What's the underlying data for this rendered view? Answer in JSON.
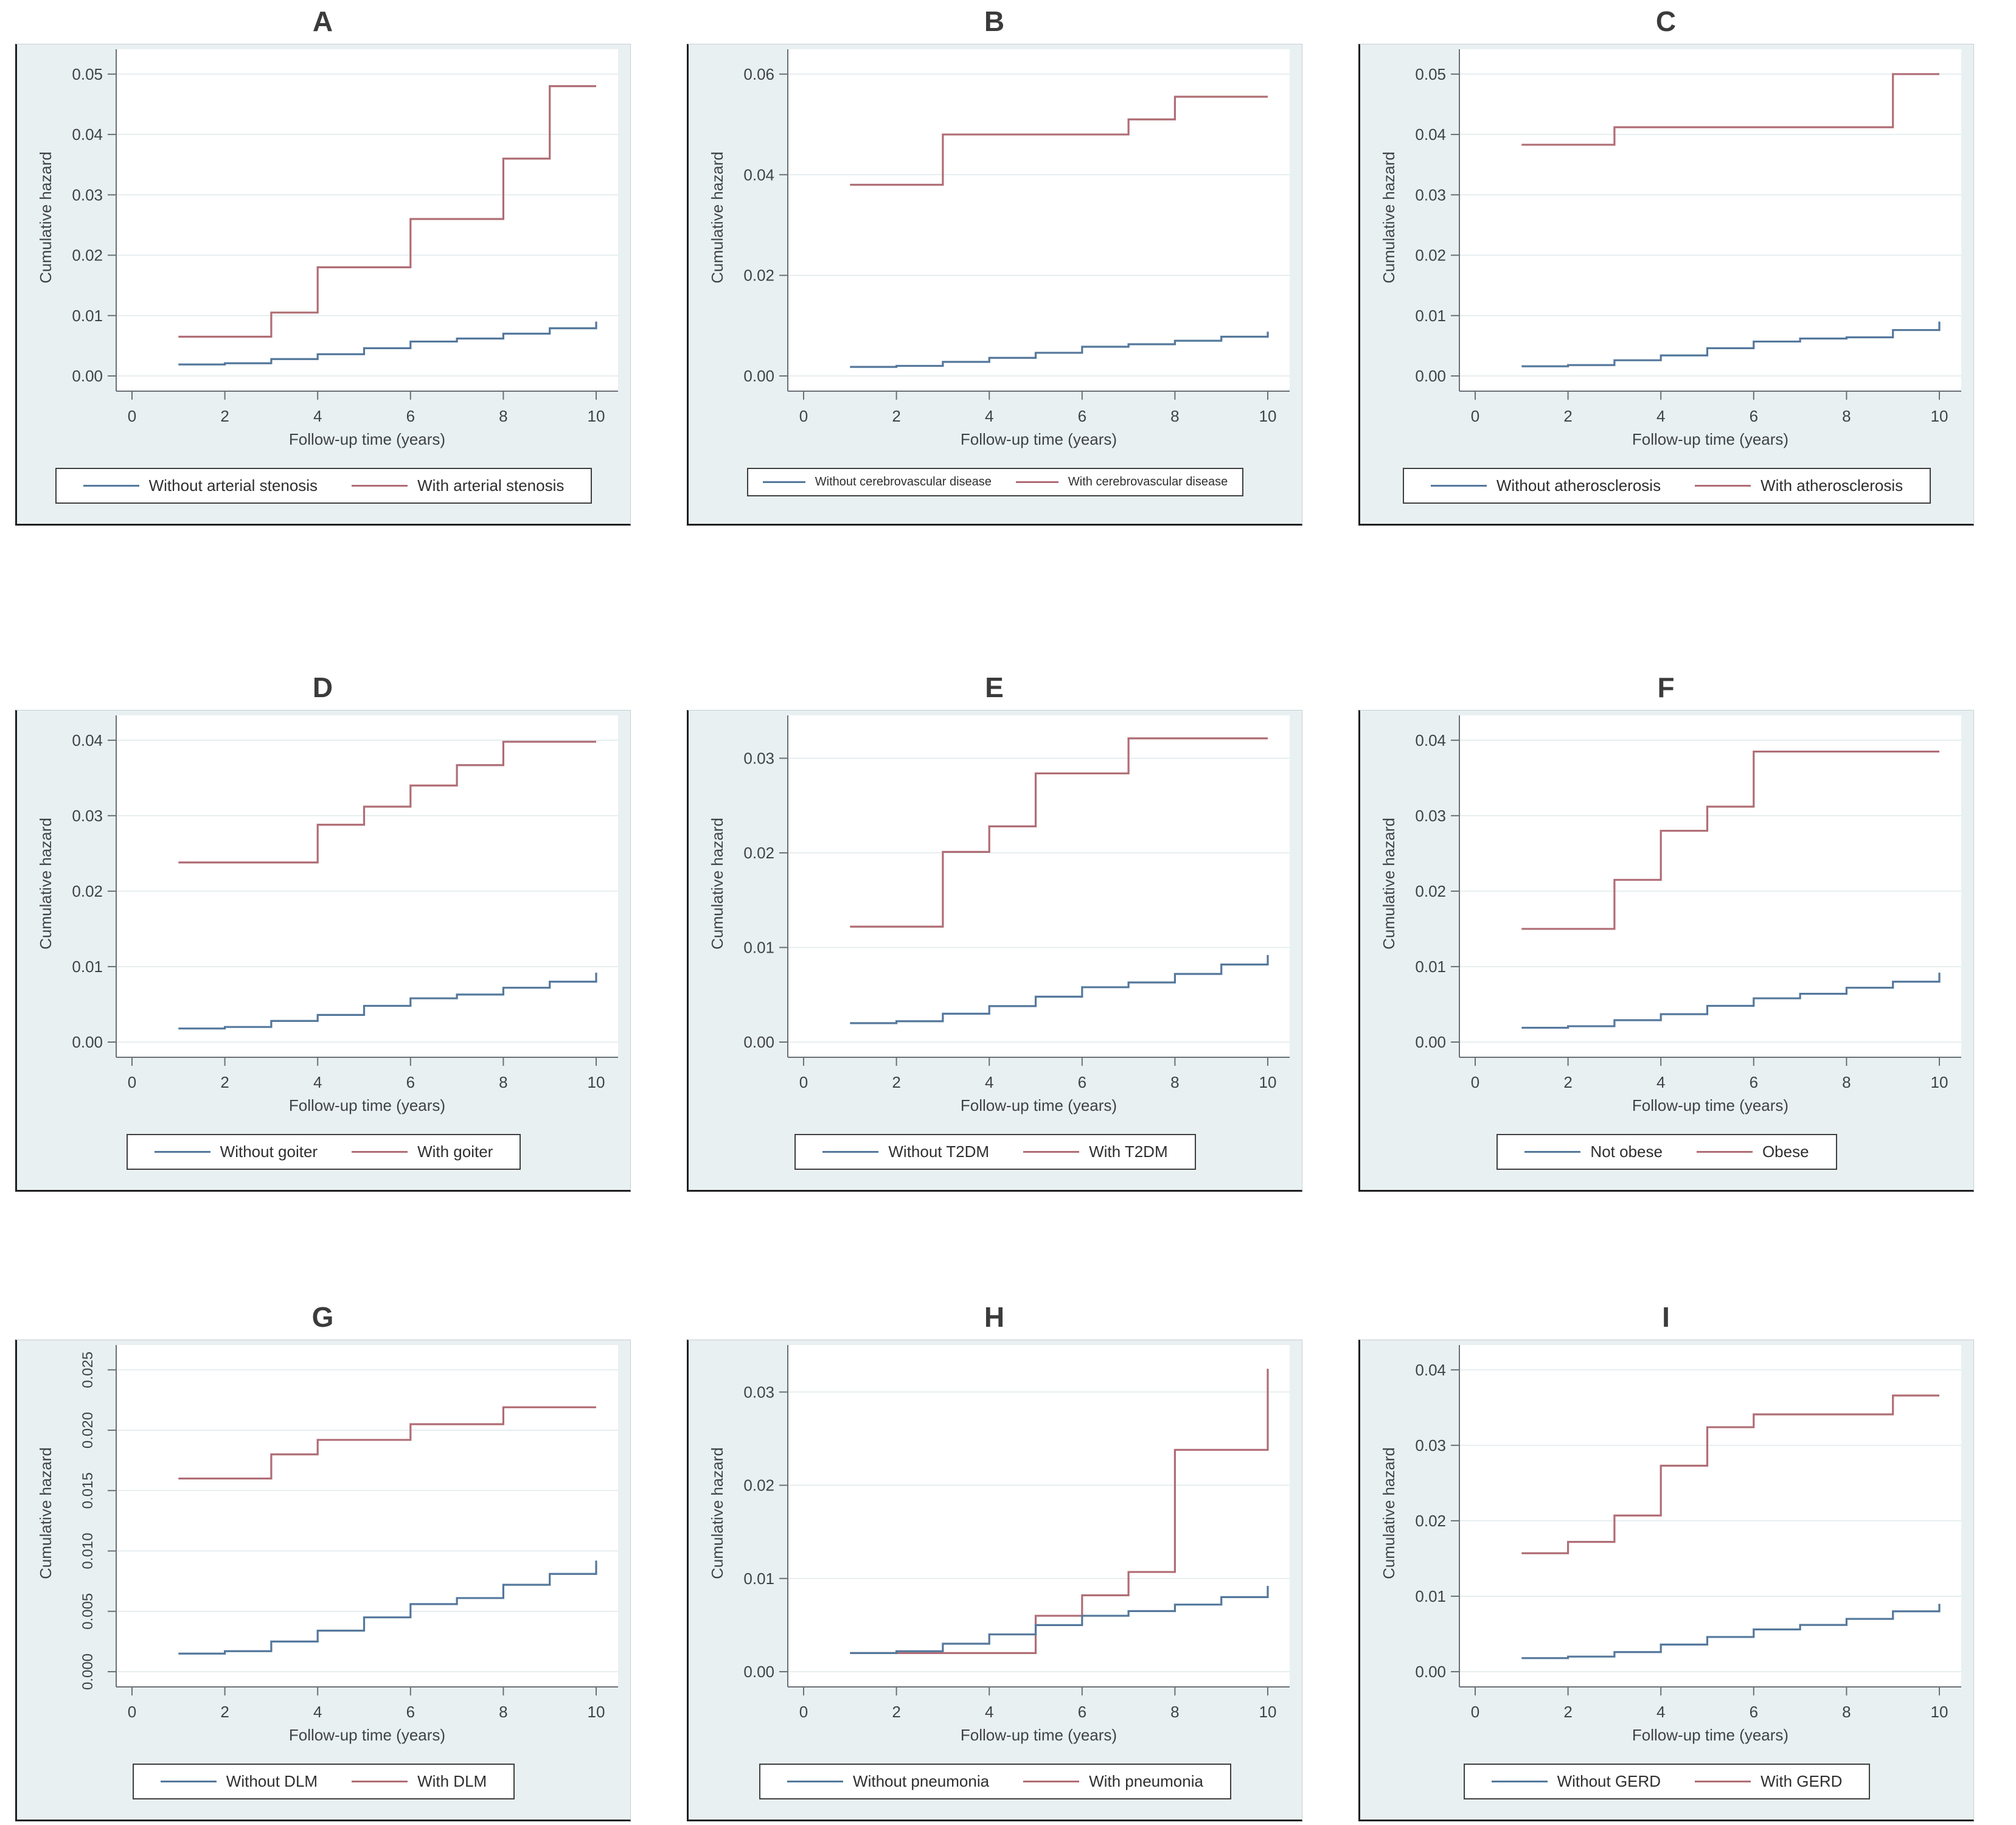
{
  "style": {
    "blue": "#54789c",
    "red": "#b06d75",
    "frame_bg": "#e9f0f2",
    "plot_bg": "#ffffff",
    "grid": "#dfe9ec",
    "axis": "#6a7075",
    "tick_text": "#3f4349",
    "title_text": "#3b3b3b",
    "legend_border": "#3f3f3f"
  },
  "chart_data": [
    {
      "id": "A",
      "type": "line",
      "subtype": "step",
      "title": "A",
      "xlabel": "Follow-up time (years)",
      "ylabel": "Cumulative hazard",
      "xticks": [
        0,
        2,
        4,
        6,
        8,
        10
      ],
      "xtick_labels": [
        "0",
        "2",
        "4",
        "6",
        "8",
        "10"
      ],
      "xlim": [
        0,
        10
      ],
      "ytick_values": [
        0,
        0.01,
        0.02,
        0.03,
        0.04,
        0.05
      ],
      "ytick_labels": [
        "0.00",
        "0.01",
        "0.02",
        "0.03",
        "0.04",
        "0.05"
      ],
      "ymax": 0.0525,
      "rotated_ytick_labels": false,
      "grid": "horizontal",
      "legend_position": "bottom",
      "series": [
        {
          "name": "Without arterial stenosis",
          "color_key": "blue",
          "steps": [
            [
              1,
              0.0019
            ],
            [
              2,
              0.0021
            ],
            [
              3,
              0.0028
            ],
            [
              4,
              0.0036
            ],
            [
              5,
              0.0046
            ],
            [
              6,
              0.0057
            ],
            [
              7,
              0.0062
            ],
            [
              8,
              0.007
            ],
            [
              9,
              0.0079
            ],
            [
              10,
              0.009
            ]
          ]
        },
        {
          "name": "With arterial stenosis",
          "color_key": "red",
          "steps": [
            [
              1,
              0.0065
            ],
            [
              3,
              0.0105
            ],
            [
              4,
              0.018
            ],
            [
              6,
              0.026
            ],
            [
              8,
              0.036
            ],
            [
              9,
              0.048
            ],
            [
              10,
              0.048
            ]
          ]
        }
      ]
    },
    {
      "id": "B",
      "type": "line",
      "subtype": "step",
      "title": "B",
      "xlabel": "Follow-up time (years)",
      "ylabel": "Cumulative hazard",
      "xticks": [
        0,
        2,
        4,
        6,
        8,
        10
      ],
      "xtick_labels": [
        "0",
        "2",
        "4",
        "6",
        "8",
        "10"
      ],
      "xlim": [
        0,
        10
      ],
      "ytick_values": [
        0,
        0.02,
        0.04,
        0.06
      ],
      "ytick_labels": [
        "0.00",
        "0.02",
        "0.04",
        "0.06"
      ],
      "ymax": 0.063,
      "rotated_ytick_labels": false,
      "grid": "horizontal",
      "legend_position": "bottom",
      "series": [
        {
          "name": "Without cerebrovascular disease",
          "color_key": "blue",
          "steps": [
            [
              1,
              0.0018
            ],
            [
              2,
              0.002
            ],
            [
              3,
              0.0028
            ],
            [
              4,
              0.0036
            ],
            [
              5,
              0.0046
            ],
            [
              6,
              0.0058
            ],
            [
              7,
              0.0063
            ],
            [
              8,
              0.007
            ],
            [
              9,
              0.0078
            ],
            [
              10,
              0.0088
            ]
          ]
        },
        {
          "name": "With cerebrovascular disease",
          "color_key": "red",
          "steps": [
            [
              1,
              0.038
            ],
            [
              3,
              0.048
            ],
            [
              7,
              0.051
            ],
            [
              8,
              0.0555
            ],
            [
              10,
              0.0555
            ]
          ]
        }
      ]
    },
    {
      "id": "C",
      "type": "line",
      "subtype": "step",
      "title": "C",
      "xlabel": "Follow-up time (years)",
      "ylabel": "Cumulative hazard",
      "xticks": [
        0,
        2,
        4,
        6,
        8,
        10
      ],
      "xtick_labels": [
        "0",
        "2",
        "4",
        "6",
        "8",
        "10"
      ],
      "xlim": [
        0,
        10
      ],
      "ytick_values": [
        0,
        0.01,
        0.02,
        0.03,
        0.04,
        0.05
      ],
      "ytick_labels": [
        "0.00",
        "0.01",
        "0.02",
        "0.03",
        "0.04",
        "0.05"
      ],
      "ymax": 0.0525,
      "rotated_ytick_labels": false,
      "grid": "horizontal",
      "legend_position": "bottom",
      "series": [
        {
          "name": "Without atherosclerosis",
          "color_key": "blue",
          "steps": [
            [
              1,
              0.0016
            ],
            [
              2,
              0.0018
            ],
            [
              3,
              0.0026
            ],
            [
              4,
              0.0034
            ],
            [
              5,
              0.0046
            ],
            [
              6,
              0.0057
            ],
            [
              7,
              0.0062
            ],
            [
              8,
              0.0064
            ],
            [
              9,
              0.0076
            ],
            [
              10,
              0.009
            ]
          ]
        },
        {
          "name": "With atherosclerosis",
          "color_key": "red",
          "steps": [
            [
              1,
              0.0383
            ],
            [
              3,
              0.0412
            ],
            [
              9,
              0.05
            ],
            [
              10,
              0.05
            ]
          ]
        }
      ]
    },
    {
      "id": "D",
      "type": "line",
      "subtype": "step",
      "title": "D",
      "xlabel": "Follow-up time (years)",
      "ylabel": "Cumulative hazard",
      "xticks": [
        0,
        2,
        4,
        6,
        8,
        10
      ],
      "xtick_labels": [
        "0",
        "2",
        "4",
        "6",
        "8",
        "10"
      ],
      "xlim": [
        0,
        10
      ],
      "ytick_values": [
        0,
        0.01,
        0.02,
        0.03,
        0.04
      ],
      "ytick_labels": [
        "0.00",
        "0.01",
        "0.02",
        "0.03",
        "0.04"
      ],
      "ymax": 0.042,
      "rotated_ytick_labels": false,
      "grid": "horizontal",
      "legend_position": "bottom",
      "series": [
        {
          "name": "Without goiter",
          "color_key": "blue",
          "steps": [
            [
              1,
              0.0018
            ],
            [
              2,
              0.002
            ],
            [
              3,
              0.0028
            ],
            [
              4,
              0.0036
            ],
            [
              5,
              0.0048
            ],
            [
              6,
              0.0058
            ],
            [
              7,
              0.0063
            ],
            [
              8,
              0.0072
            ],
            [
              9,
              0.008
            ],
            [
              10,
              0.0092
            ]
          ]
        },
        {
          "name": "With goiter",
          "color_key": "red",
          "steps": [
            [
              1,
              0.0238
            ],
            [
              4,
              0.0288
            ],
            [
              5,
              0.0312
            ],
            [
              6,
              0.034
            ],
            [
              7,
              0.0367
            ],
            [
              8,
              0.0398
            ],
            [
              10,
              0.0398
            ]
          ]
        }
      ]
    },
    {
      "id": "E",
      "type": "line",
      "subtype": "step",
      "title": "E",
      "xlabel": "Follow-up time (years)",
      "ylabel": "Cumulative hazard",
      "xticks": [
        0,
        2,
        4,
        6,
        8,
        10
      ],
      "xtick_labels": [
        "0",
        "2",
        "4",
        "6",
        "8",
        "10"
      ],
      "xlim": [
        0,
        10
      ],
      "ytick_values": [
        0,
        0.01,
        0.02,
        0.03
      ],
      "ytick_labels": [
        "0.00",
        "0.01",
        "0.02",
        "0.03"
      ],
      "ymax": 0.0335,
      "rotated_ytick_labels": false,
      "grid": "horizontal",
      "legend_position": "bottom",
      "series": [
        {
          "name": "Without T2DM",
          "color_key": "blue",
          "steps": [
            [
              1,
              0.002
            ],
            [
              2,
              0.0022
            ],
            [
              3,
              0.003
            ],
            [
              4,
              0.0038
            ],
            [
              5,
              0.0048
            ],
            [
              6,
              0.0058
            ],
            [
              7,
              0.0063
            ],
            [
              8,
              0.0072
            ],
            [
              9,
              0.0082
            ],
            [
              10,
              0.0092
            ]
          ]
        },
        {
          "name": "With T2DM",
          "color_key": "red",
          "steps": [
            [
              1,
              0.0122
            ],
            [
              3,
              0.0201
            ],
            [
              4,
              0.0228
            ],
            [
              5,
              0.0284
            ],
            [
              7,
              0.0321
            ],
            [
              10,
              0.0321
            ]
          ]
        }
      ]
    },
    {
      "id": "F",
      "type": "line",
      "subtype": "step",
      "title": "F",
      "xlabel": "Follow-up time (years)",
      "ylabel": "Cumulative hazard",
      "xticks": [
        0,
        2,
        4,
        6,
        8,
        10
      ],
      "xtick_labels": [
        "0",
        "2",
        "4",
        "6",
        "8",
        "10"
      ],
      "xlim": [
        0,
        10
      ],
      "ytick_values": [
        0,
        0.01,
        0.02,
        0.03,
        0.04
      ],
      "ytick_labels": [
        "0.00",
        "0.01",
        "0.02",
        "0.03",
        "0.04"
      ],
      "ymax": 0.042,
      "rotated_ytick_labels": false,
      "grid": "horizontal",
      "legend_position": "bottom",
      "series": [
        {
          "name": "Not obese",
          "color_key": "blue",
          "steps": [
            [
              1,
              0.0019
            ],
            [
              2,
              0.0021
            ],
            [
              3,
              0.0029
            ],
            [
              4,
              0.0037
            ],
            [
              5,
              0.0048
            ],
            [
              6,
              0.0058
            ],
            [
              7,
              0.0064
            ],
            [
              8,
              0.0072
            ],
            [
              9,
              0.008
            ],
            [
              10,
              0.0092
            ]
          ]
        },
        {
          "name": "Obese",
          "color_key": "red",
          "steps": [
            [
              1,
              0.015
            ],
            [
              3,
              0.0215
            ],
            [
              4,
              0.028
            ],
            [
              5,
              0.0312
            ],
            [
              6,
              0.0385
            ],
            [
              10,
              0.0385
            ]
          ]
        }
      ]
    },
    {
      "id": "G",
      "type": "line",
      "subtype": "step",
      "title": "G",
      "xlabel": "Follow-up time (years)",
      "ylabel": "Cumulative hazard",
      "xticks": [
        0,
        2,
        4,
        6,
        8,
        10
      ],
      "xtick_labels": [
        "0",
        "2",
        "4",
        "6",
        "8",
        "10"
      ],
      "xlim": [
        0,
        10
      ],
      "ytick_values": [
        0,
        0.005,
        0.01,
        0.015,
        0.02,
        0.025
      ],
      "ytick_labels": [
        "0.000",
        "0.005",
        "0.010",
        "0.015",
        "0.020",
        "0.025"
      ],
      "ymax": 0.02625,
      "rotated_ytick_labels": true,
      "grid": "horizontal",
      "legend_position": "bottom",
      "series": [
        {
          "name": "Without DLM",
          "color_key": "blue",
          "steps": [
            [
              1,
              0.0015
            ],
            [
              2,
              0.0017
            ],
            [
              3,
              0.0025
            ],
            [
              4,
              0.0034
            ],
            [
              5,
              0.0045
            ],
            [
              6,
              0.0056
            ],
            [
              7,
              0.0061
            ],
            [
              8,
              0.0072
            ],
            [
              9,
              0.0081
            ],
            [
              10,
              0.0092
            ]
          ]
        },
        {
          "name": "With DLM",
          "color_key": "red",
          "steps": [
            [
              1,
              0.016
            ],
            [
              3,
              0.018
            ],
            [
              4,
              0.0192
            ],
            [
              6,
              0.0205
            ],
            [
              8,
              0.0219
            ],
            [
              10,
              0.0219
            ]
          ]
        }
      ]
    },
    {
      "id": "H",
      "type": "line",
      "subtype": "step",
      "title": "H",
      "xlabel": "Follow-up time (years)",
      "ylabel": "Cumulative hazard",
      "xticks": [
        0,
        2,
        4,
        6,
        8,
        10
      ],
      "xtick_labels": [
        "0",
        "2",
        "4",
        "6",
        "8",
        "10"
      ],
      "xlim": [
        0,
        10
      ],
      "ytick_values": [
        0,
        0.01,
        0.02,
        0.03
      ],
      "ytick_labels": [
        "0.00",
        "0.01",
        "0.02",
        "0.03"
      ],
      "ymax": 0.034,
      "rotated_ytick_labels": false,
      "grid": "horizontal",
      "legend_position": "bottom",
      "series": [
        {
          "name": "Without pneumonia",
          "color_key": "blue",
          "steps": [
            [
              1,
              0.002
            ],
            [
              2,
              0.0022
            ],
            [
              3,
              0.003
            ],
            [
              4,
              0.004
            ],
            [
              5,
              0.005
            ],
            [
              6,
              0.006
            ],
            [
              7,
              0.0065
            ],
            [
              8,
              0.0072
            ],
            [
              9,
              0.008
            ],
            [
              10,
              0.0092
            ]
          ]
        },
        {
          "name": "With pneumonia",
          "color_key": "red",
          "steps": [
            [
              1,
              0.002
            ],
            [
              5,
              0.006
            ],
            [
              6,
              0.0082
            ],
            [
              7,
              0.0107
            ],
            [
              8,
              0.0238
            ],
            [
              10,
              0.0325
            ]
          ]
        }
      ]
    },
    {
      "id": "I",
      "type": "line",
      "subtype": "step",
      "title": "I",
      "xlabel": "Follow-up time (years)",
      "ylabel": "Cumulative hazard",
      "xticks": [
        0,
        2,
        4,
        6,
        8,
        10
      ],
      "xtick_labels": [
        "0",
        "2",
        "4",
        "6",
        "8",
        "10"
      ],
      "xlim": [
        0,
        10
      ],
      "ytick_values": [
        0,
        0.01,
        0.02,
        0.03,
        0.04
      ],
      "ytick_labels": [
        "0.00",
        "0.01",
        "0.02",
        "0.03",
        "0.04"
      ],
      "ymax": 0.042,
      "rotated_ytick_labels": false,
      "grid": "horizontal",
      "legend_position": "bottom",
      "series": [
        {
          "name": "Without GERD",
          "color_key": "blue",
          "steps": [
            [
              1,
              0.0018
            ],
            [
              2,
              0.002
            ],
            [
              3,
              0.0026
            ],
            [
              4,
              0.0036
            ],
            [
              5,
              0.0046
            ],
            [
              6,
              0.0056
            ],
            [
              7,
              0.0062
            ],
            [
              8,
              0.007
            ],
            [
              9,
              0.008
            ],
            [
              10,
              0.009
            ]
          ]
        },
        {
          "name": "With GERD",
          "color_key": "red",
          "steps": [
            [
              1,
              0.0157
            ],
            [
              2,
              0.0172
            ],
            [
              3,
              0.0207
            ],
            [
              4,
              0.0273
            ],
            [
              5,
              0.0324
            ],
            [
              6,
              0.0341
            ],
            [
              9,
              0.0366
            ],
            [
              10,
              0.0366
            ]
          ]
        }
      ]
    }
  ]
}
